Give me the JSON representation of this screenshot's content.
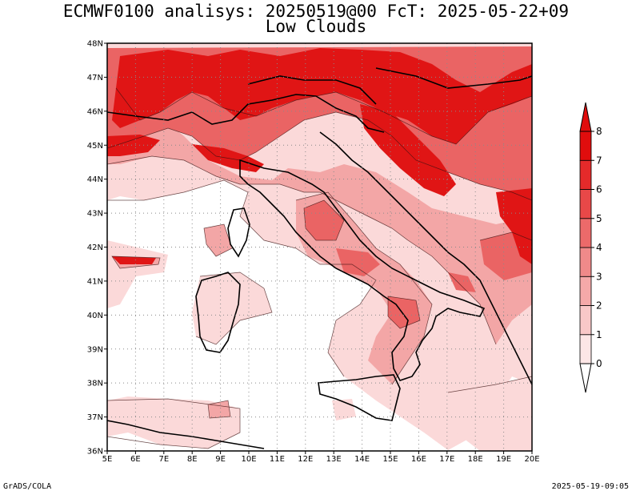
{
  "title": {
    "line1": "ECMWF0100 analisys: 20250519@00 FcT: 2025-05-22+09",
    "line2": "Low Clouds"
  },
  "map": {
    "lon_labels": [
      "5E",
      "6E",
      "7E",
      "8E",
      "9E",
      "10E",
      "11E",
      "12E",
      "13E",
      "14E",
      "15E",
      "16E",
      "17E",
      "18E",
      "19E",
      "20E"
    ],
    "lat_labels": [
      "48N",
      "47N",
      "46N",
      "45N",
      "44N",
      "43N",
      "42N",
      "41N",
      "40N",
      "39N",
      "38N",
      "37N",
      "36N"
    ],
    "lon_range": [
      5,
      20
    ],
    "lat_range": [
      36,
      48
    ],
    "grid": "dotted"
  },
  "colorbar": {
    "labels": [
      "0",
      "1",
      "2",
      "3",
      "4",
      "5",
      "6",
      "7",
      "8"
    ],
    "colors": [
      "#fde6e6",
      "#f9c8c8",
      "#f5a9a9",
      "#f08a8a",
      "#ec6a6a",
      "#e84848",
      "#e52a2a",
      "#e00d0d"
    ]
  },
  "footer": {
    "left": "GrADS/COLA",
    "right": "2025-05-19-09:05"
  }
}
